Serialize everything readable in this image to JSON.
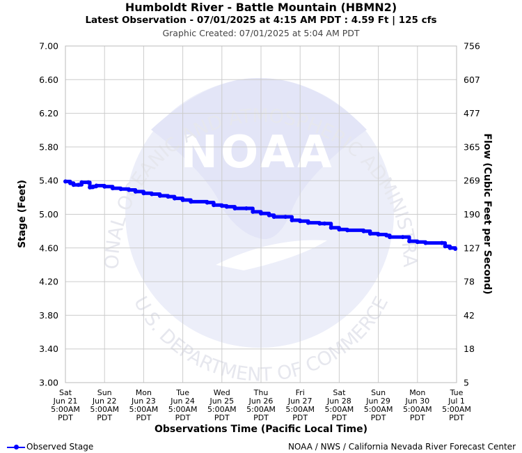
{
  "header": {
    "title": "Humboldt River - Battle Mountain (HBMN2)",
    "latest": "Latest Observation - 07/01/2025 at 4:15 AM PDT : 4.59 Ft | 125 cfs",
    "created": "Graphic Created: 07/01/2025 at 5:04 AM PDT"
  },
  "footer": {
    "legend_label": "Observed Stage",
    "credit": "NOAA / NWS / California Nevada River Forecast Center"
  },
  "watermark": {
    "logo_text": "NOAA",
    "top_arc": "NATIONAL OCEANIC AND ATMOSPHERIC ADMINISTRATION",
    "bottom_arc": "U.S. DEPARTMENT OF COMMERCE"
  },
  "colors": {
    "series": "#0000ff",
    "grid": "#cccccc",
    "watermark": "#e9eaf8"
  },
  "chart_data": {
    "type": "line",
    "xlabel": "Observations Time (Pacific Local Time)",
    "ylabel": "Stage (Feet)",
    "y2label": "Flow (Cubic Feet per Second)",
    "ylim": [
      3.0,
      7.0
    ],
    "yticks": [
      "3.00",
      "3.40",
      "3.80",
      "4.20",
      "4.60",
      "5.00",
      "5.40",
      "5.80",
      "6.20",
      "6.60",
      "7.00"
    ],
    "y2ticks": [
      "5",
      "18",
      "42",
      "78",
      "127",
      "190",
      "269",
      "365",
      "477",
      "607",
      "756"
    ],
    "xlim": [
      "2025-06-21 05:00",
      "2025-07-01 05:00"
    ],
    "xticks": [
      [
        "Sat",
        "Jun 21",
        "5:00AM",
        "PDT"
      ],
      [
        "Sun",
        "Jun 22",
        "5:00AM",
        "PDT"
      ],
      [
        "Mon",
        "Jun 23",
        "5:00AM",
        "PDT"
      ],
      [
        "Tue",
        "Jun 24",
        "5:00AM",
        "PDT"
      ],
      [
        "Wed",
        "Jun 25",
        "5:00AM",
        "PDT"
      ],
      [
        "Thu",
        "Jun 26",
        "5:00AM",
        "PDT"
      ],
      [
        "Fri",
        "Jun 27",
        "5:00AM",
        "PDT"
      ],
      [
        "Sat",
        "Jun 28",
        "5:00AM",
        "PDT"
      ],
      [
        "Sun",
        "Jun 29",
        "5:00AM",
        "PDT"
      ],
      [
        "Mon",
        "Jun 30",
        "5:00AM",
        "PDT"
      ],
      [
        "Tue",
        "Jul 1",
        "5:00AM",
        "PDT"
      ]
    ],
    "grid": true,
    "legend_position": "bottom-left",
    "series": [
      {
        "name": "Observed Stage",
        "points": [
          [
            "2025-06-21 05:00",
            5.39
          ],
          [
            "2025-06-21 08:00",
            5.37
          ],
          [
            "2025-06-21 10:00",
            5.35
          ],
          [
            "2025-06-21 13:00",
            5.35
          ],
          [
            "2025-06-21 15:00",
            5.38
          ],
          [
            "2025-06-21 19:00",
            5.38
          ],
          [
            "2025-06-21 20:00",
            5.32
          ],
          [
            "2025-06-21 22:00",
            5.33
          ],
          [
            "2025-06-22 00:00",
            5.34
          ],
          [
            "2025-06-22 05:00",
            5.33
          ],
          [
            "2025-06-22 10:00",
            5.31
          ],
          [
            "2025-06-22 15:00",
            5.3
          ],
          [
            "2025-06-22 20:00",
            5.29
          ],
          [
            "2025-06-23 00:00",
            5.27
          ],
          [
            "2025-06-23 05:00",
            5.25
          ],
          [
            "2025-06-23 10:00",
            5.24
          ],
          [
            "2025-06-23 15:00",
            5.22
          ],
          [
            "2025-06-23 20:00",
            5.21
          ],
          [
            "2025-06-24 00:00",
            5.19
          ],
          [
            "2025-06-24 05:00",
            5.17
          ],
          [
            "2025-06-24 10:00",
            5.15
          ],
          [
            "2025-06-24 20:00",
            5.14
          ],
          [
            "2025-06-25 00:00",
            5.11
          ],
          [
            "2025-06-25 05:00",
            5.1
          ],
          [
            "2025-06-25 08:00",
            5.09
          ],
          [
            "2025-06-25 13:00",
            5.07
          ],
          [
            "2025-06-25 20:00",
            5.07
          ],
          [
            "2025-06-26 00:00",
            5.03
          ],
          [
            "2025-06-26 05:00",
            5.01
          ],
          [
            "2025-06-26 10:00",
            4.99
          ],
          [
            "2025-06-26 13:00",
            4.97
          ],
          [
            "2025-06-26 20:00",
            4.97
          ],
          [
            "2025-06-27 00:00",
            4.93
          ],
          [
            "2025-06-27 05:00",
            4.92
          ],
          [
            "2025-06-27 10:00",
            4.9
          ],
          [
            "2025-06-27 17:00",
            4.89
          ],
          [
            "2025-06-27 20:00",
            4.89
          ],
          [
            "2025-06-28 00:00",
            4.84
          ],
          [
            "2025-06-28 05:00",
            4.82
          ],
          [
            "2025-06-28 10:00",
            4.81
          ],
          [
            "2025-06-28 20:00",
            4.8
          ],
          [
            "2025-06-29 00:00",
            4.77
          ],
          [
            "2025-06-29 05:00",
            4.76
          ],
          [
            "2025-06-29 10:00",
            4.75
          ],
          [
            "2025-06-29 12:00",
            4.73
          ],
          [
            "2025-06-29 20:00",
            4.73
          ],
          [
            "2025-06-30 00:00",
            4.68
          ],
          [
            "2025-06-30 05:00",
            4.67
          ],
          [
            "2025-06-30 10:00",
            4.66
          ],
          [
            "2025-06-30 20:00",
            4.66
          ],
          [
            "2025-06-30 22:00",
            4.62
          ],
          [
            "2025-07-01 01:00",
            4.6
          ],
          [
            "2025-07-01 04:15",
            4.59
          ]
        ]
      }
    ]
  }
}
